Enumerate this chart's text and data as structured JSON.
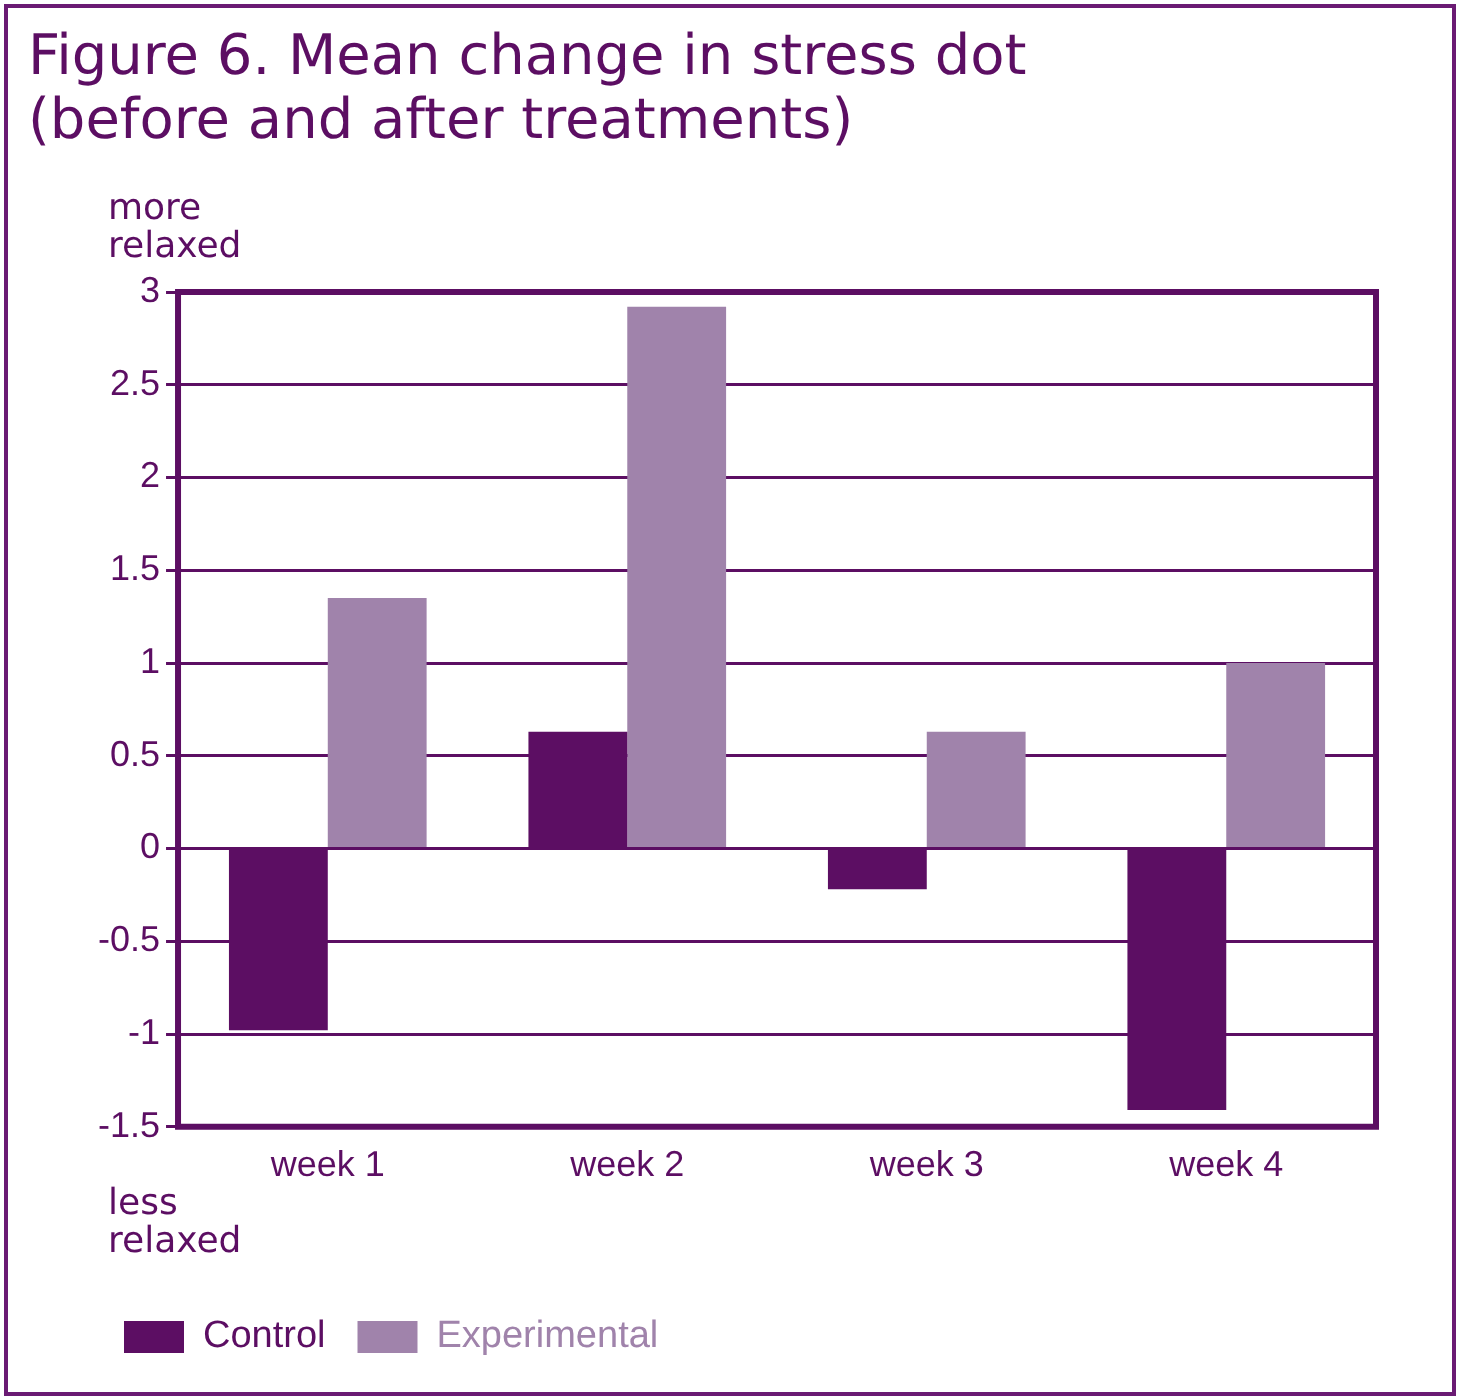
{
  "chart_data": {
    "type": "bar",
    "title": "Figure 6. Mean change in stress dot\n(before and after treatments)",
    "categories": [
      "week 1",
      "week 2",
      "week 3",
      "week 4"
    ],
    "series": [
      {
        "name": "Control",
        "color": "#5c0e63",
        "values": [
          -0.98,
          0.63,
          -0.22,
          -1.41
        ]
      },
      {
        "name": "Experimental",
        "color": "#a083ab",
        "values": [
          1.35,
          2.92,
          0.63,
          1.0
        ]
      }
    ],
    "ylim": [
      -1.5,
      3
    ],
    "yticks": [
      -1.5,
      -1,
      -0.5,
      0,
      0.5,
      1,
      1.5,
      2,
      2.5,
      3
    ],
    "grid": "y",
    "legend": "bottom left",
    "annotations": [
      "more\nrelaxed",
      "less\nrelaxed"
    ]
  }
}
